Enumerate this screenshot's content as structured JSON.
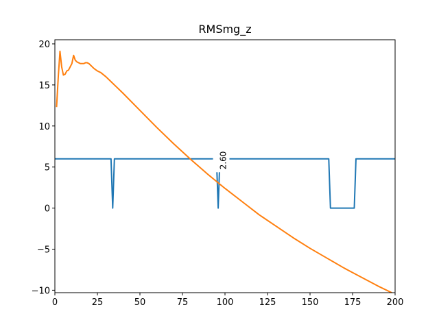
{
  "chart_data": {
    "type": "line",
    "title": "RMSmg_z",
    "xlabel": "",
    "ylabel": "",
    "xlim": [
      0,
      200
    ],
    "ylim": [
      -10.3,
      20.5
    ],
    "xticks": [
      0,
      25,
      50,
      75,
      100,
      125,
      150,
      175,
      200
    ],
    "yticks": [
      -10,
      -5,
      0,
      5,
      10,
      15,
      20
    ],
    "grid": false,
    "legend": "none",
    "series": [
      {
        "color": "#1f77b4",
        "x": [
          0,
          33,
          34,
          35,
          95,
          96,
          97,
          161,
          162,
          176,
          177,
          200
        ],
        "y": [
          6,
          6,
          0,
          6,
          6,
          0,
          6,
          6,
          0,
          0,
          6,
          6
        ]
      },
      {
        "color": "#ff7f0e",
        "x": [
          1,
          2,
          3,
          4,
          5,
          6,
          7,
          8,
          9,
          10,
          11,
          12,
          13,
          14,
          15,
          16,
          17,
          18,
          19,
          20,
          21,
          22,
          23,
          25,
          27,
          30,
          33,
          36,
          40,
          50,
          60,
          70,
          80,
          90,
          100,
          110,
          120,
          130,
          140,
          150,
          160,
          170,
          180,
          190,
          200
        ],
        "y": [
          12.3,
          16.0,
          19.1,
          17.2,
          16.2,
          16.3,
          16.7,
          16.8,
          17.2,
          17.6,
          18.6,
          18.0,
          17.8,
          17.7,
          17.6,
          17.6,
          17.6,
          17.7,
          17.7,
          17.6,
          17.4,
          17.2,
          17.0,
          16.7,
          16.5,
          16.0,
          15.4,
          14.8,
          14.0,
          11.9,
          9.8,
          7.8,
          5.9,
          4.1,
          2.4,
          0.8,
          -0.8,
          -2.2,
          -3.6,
          -4.9,
          -6.1,
          -7.3,
          -8.4,
          -9.5,
          -10.5
        ]
      }
    ],
    "annotations": [
      {
        "text": "2.60",
        "x": 99,
        "y": 4.7,
        "rotation": -90
      }
    ]
  }
}
